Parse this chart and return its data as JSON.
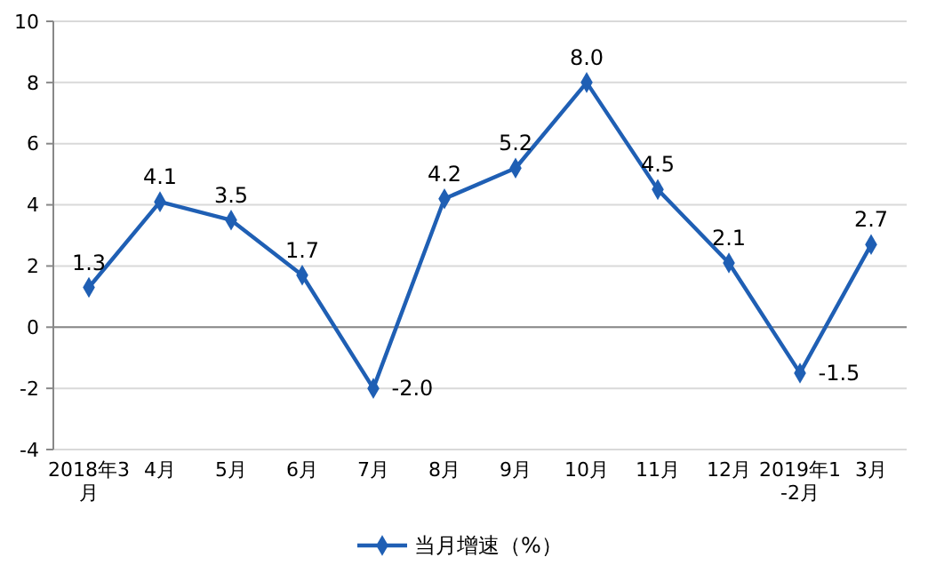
{
  "chart_data": {
    "type": "line",
    "categories": [
      "2018年3月",
      "4月",
      "5月",
      "6月",
      "7月",
      "8月",
      "9月",
      "10月",
      "11月",
      "12月",
      "2019年1-2月",
      "3月"
    ],
    "series": [
      {
        "name": "当月增速（%）",
        "color": "#1f5fb4",
        "values": [
          1.3,
          4.1,
          3.5,
          1.7,
          -2.0,
          4.2,
          5.2,
          8.0,
          4.5,
          2.1,
          -1.5,
          2.7
        ],
        "value_labels": [
          "1.3",
          "4.1",
          "3.5",
          "1.7",
          "-2.0",
          "4.2",
          "5.2",
          "8.0",
          "4.5",
          "2.1",
          "-1.5",
          "2.7"
        ]
      }
    ],
    "ylim": [
      -4,
      10
    ],
    "yticks": [
      -4,
      -2,
      0,
      2,
      4,
      6,
      8,
      10
    ],
    "grid": "y",
    "legend": "bottom",
    "marker": "diamond",
    "line_style": "solid"
  }
}
